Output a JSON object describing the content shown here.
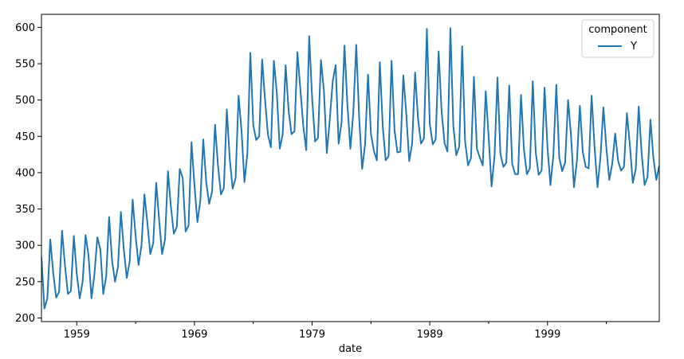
{
  "chart_data": {
    "type": "line",
    "xlabel": "date",
    "ylabel": "",
    "title": "",
    "xlim": [
      1956.0,
      2008.5
    ],
    "ylim": [
      195,
      618
    ],
    "x_ticks_major": [
      1959,
      1969,
      1979,
      1989,
      1999
    ],
    "x_ticks_minor": [
      1964,
      1974,
      1984,
      1994,
      2004
    ],
    "y_ticks": [
      200,
      250,
      300,
      350,
      400,
      450,
      500,
      550,
      600
    ],
    "grid": false,
    "legend": {
      "title": "component",
      "placement": "top-right"
    },
    "series": [
      {
        "name": "Y",
        "color": "#1f77b4",
        "x_start": 1956.0,
        "x_step": 0.25,
        "values": [
          284,
          213,
          227,
          308,
          262,
          228,
          236,
          320,
          272,
          233,
          237,
          313,
          261,
          227,
          250,
          314,
          286,
          227,
          260,
          311,
          295,
          233,
          257,
          339,
          279,
          250,
          270,
          346,
          294,
          255,
          278,
          363,
          313,
          273,
          300,
          370,
          331,
          288,
          303,
          386,
          335,
          288,
          308,
          402,
          353,
          316,
          325,
          405,
          393,
          319,
          327,
          442,
          383,
          332,
          361,
          446,
          387,
          357,
          374,
          466,
          410,
          370,
          379,
          487,
          419,
          378,
          393,
          506,
          458,
          387,
          427,
          565,
          465,
          445,
          450,
          556,
          500,
          452,
          435,
          554,
          510,
          433,
          453,
          548,
          486,
          453,
          457,
          566,
          515,
          464,
          431,
          588,
          503,
          443,
          448,
          555,
          513,
          427,
          473,
          526,
          548,
          440,
          469,
          575,
          493,
          433,
          483,
          576,
          475,
          405,
          439,
          535,
          453,
          430,
          417,
          552,
          464,
          417,
          423,
          554,
          459,
          428,
          429,
          534,
          481,
          416,
          440,
          538,
          474,
          440,
          447,
          598,
          467,
          439,
          446,
          567,
          485,
          441,
          429,
          599,
          464,
          424,
          436,
          574,
          443,
          410,
          420,
          532,
          433,
          421,
          410,
          512,
          449,
          381,
          423,
          531,
          426,
          408,
          414,
          520,
          412,
          398,
          398,
          507,
          432,
          398,
          406,
          526,
          428,
          397,
          403,
          517,
          435,
          383,
          424,
          521,
          421,
          402,
          414,
          500,
          451,
          380,
          416,
          492,
          428,
          408,
          406,
          506,
          435,
          380,
          421,
          490,
          435,
          390,
          412,
          454,
          416,
          403,
          408,
          482,
          438,
          386,
          405,
          491,
          427,
          383,
          394,
          473,
          420,
          390,
          410
        ]
      }
    ]
  }
}
